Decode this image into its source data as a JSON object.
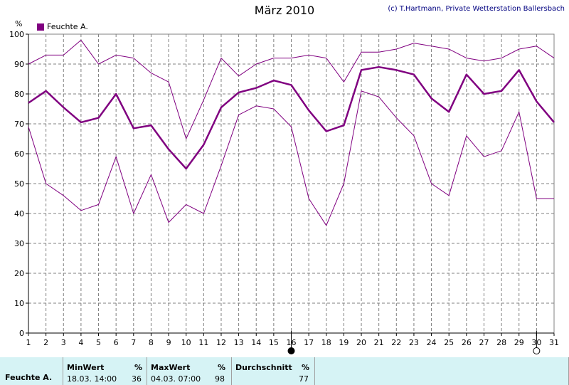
{
  "title": "März 2010",
  "copyright": "(c) T.Hartmann, Private Wetterstation Ballersbach",
  "unit": "%",
  "legend_label": "Feuchte A.",
  "colors": {
    "series": "#800080",
    "grid": "#808080",
    "stats_bg": "#d6f3f5"
  },
  "moon_icons": [
    "full-moon-icon",
    "new-moon-icon"
  ],
  "chart_data": {
    "type": "line",
    "title": "März 2010",
    "ylabel": "%",
    "xlim": [
      1,
      31
    ],
    "ylim": [
      0,
      100
    ],
    "x_ticks": [
      1,
      2,
      3,
      4,
      5,
      6,
      7,
      8,
      9,
      10,
      11,
      12,
      13,
      14,
      15,
      16,
      17,
      18,
      19,
      20,
      21,
      22,
      23,
      24,
      25,
      26,
      27,
      28,
      29,
      30,
      31
    ],
    "y_ticks": [
      0,
      10,
      20,
      30,
      40,
      50,
      60,
      70,
      80,
      90,
      100
    ],
    "grid": true,
    "legend": "top-left",
    "series": [
      {
        "name": "Feuchte A.",
        "role": "mean",
        "values": [
          77,
          81,
          75.5,
          70.5,
          72,
          80,
          68.5,
          69.5,
          61.5,
          55,
          63,
          75.5,
          80.5,
          82,
          84.5,
          83,
          74.5,
          67.5,
          69.5,
          88,
          89,
          88,
          86.5,
          78.5,
          74,
          86.5,
          80,
          81,
          88,
          77.5,
          70.5
        ]
      },
      {
        "role": "max",
        "values": [
          90,
          93,
          93,
          98,
          90,
          93,
          92,
          87,
          84,
          65,
          78,
          92,
          86,
          90,
          92,
          92,
          93,
          92,
          84,
          94,
          94,
          95,
          97,
          96,
          95,
          92,
          91,
          92,
          95,
          96,
          92
        ]
      },
      {
        "role": "min",
        "values": [
          69,
          50,
          46,
          41,
          43,
          59,
          40,
          53,
          37,
          43,
          40,
          56,
          73,
          76,
          75,
          69,
          45,
          36,
          50,
          81,
          79,
          72,
          66,
          50,
          46,
          66,
          59,
          61,
          74,
          45,
          45
        ]
      }
    ],
    "markers": [
      {
        "day": 16,
        "type": "full-moon"
      },
      {
        "day": 30,
        "type": "new-moon"
      }
    ]
  },
  "stats": {
    "row_label": "Feuchte A.",
    "min": {
      "header": "MinWert",
      "unit": "%",
      "time": "18.03.  14:00",
      "value": "36"
    },
    "max": {
      "header": "MaxWert",
      "unit": "%",
      "time": "04.03.  07:00",
      "value": "98"
    },
    "avg": {
      "header": "Durchschnitt",
      "unit": "%",
      "value": "77"
    }
  }
}
